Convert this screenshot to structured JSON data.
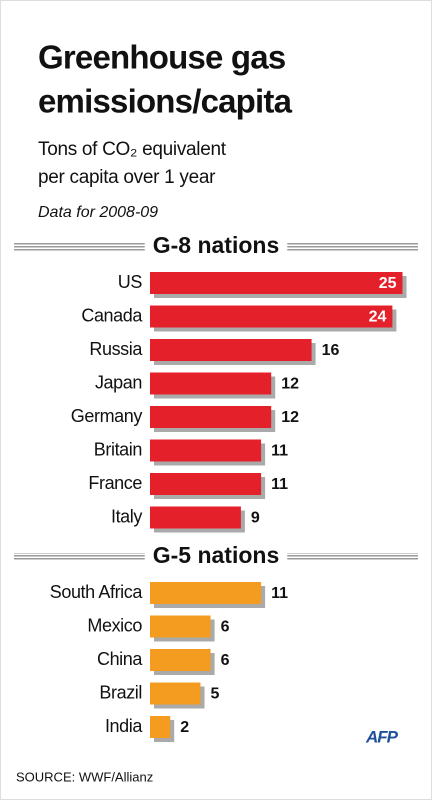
{
  "header": {
    "title": [
      "Greenhouse gas",
      "emissions/capita"
    ],
    "subtitle": [
      "Tons of CO₂ equivalent",
      "per capita over 1 year"
    ],
    "note": "Data for 2008-09"
  },
  "chart_data": [
    {
      "type": "bar",
      "title": "G-8 nations",
      "color": "#e4202b",
      "categories": [
        "US",
        "Canada",
        "Russia",
        "Japan",
        "Germany",
        "Britain",
        "France",
        "Italy"
      ],
      "values": [
        25,
        24,
        16,
        12,
        12,
        11,
        11,
        9
      ]
    },
    {
      "type": "bar",
      "title": "G-5 nations",
      "color": "#f39c1f",
      "categories": [
        "South Africa",
        "Mexico",
        "China",
        "Brazil",
        "India"
      ],
      "values": [
        11,
        6,
        6,
        5,
        2
      ]
    }
  ],
  "footer": {
    "source": "SOURCE: WWF/Allianz",
    "logo": "AFP"
  }
}
